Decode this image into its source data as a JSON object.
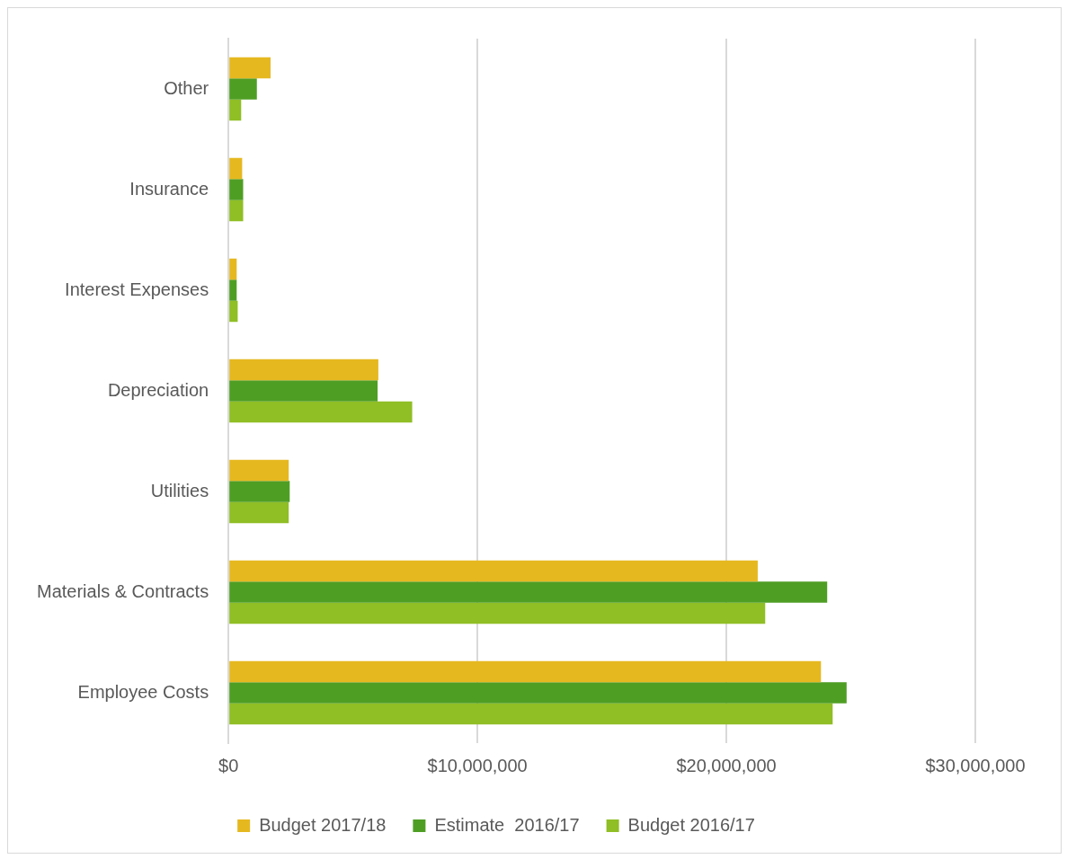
{
  "chart_data": {
    "type": "bar",
    "orientation": "horizontal",
    "categories": [
      "Other",
      "Insurance",
      "Interest Expenses",
      "Depreciation",
      "Utilities",
      "Materials & Contracts",
      "Employee Costs"
    ],
    "series": [
      {
        "name": "Budget 2017/18",
        "color": "#e6b820",
        "values": [
          1690000,
          550000,
          330000,
          6020000,
          2420000,
          21260000,
          23800000
        ]
      },
      {
        "name": "Estimate  2016/17",
        "color": "#4f9e24",
        "values": [
          1140000,
          590000,
          330000,
          5990000,
          2460000,
          24050000,
          24830000
        ]
      },
      {
        "name": "Budget 2016/17",
        "color": "#8fbe25",
        "values": [
          510000,
          590000,
          370000,
          7380000,
          2420000,
          21560000,
          24270000
        ]
      }
    ],
    "xlim": [
      0,
      30000000
    ],
    "xticks": [
      {
        "value": 0,
        "label": "$0"
      },
      {
        "value": 10000000,
        "label": "$10,000,000"
      },
      {
        "value": 20000000,
        "label": "$20,000,000"
      },
      {
        "value": 30000000,
        "label": "$30,000,000"
      }
    ],
    "grid": "x",
    "legend": "bottom"
  }
}
